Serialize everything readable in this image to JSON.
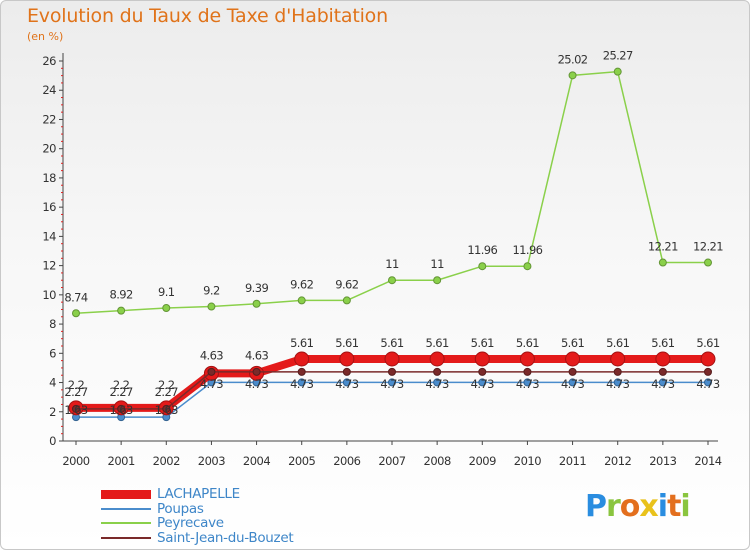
{
  "header": {
    "title": "Evolution du Taux de Taxe d'Habitation",
    "unit": "(en %)"
  },
  "logo": {
    "text": "Proxiti",
    "colors": [
      "#2a8de0",
      "#8ac53f",
      "#e36f1e",
      "#e9c21c",
      "#2a8de0",
      "#e36f1e",
      "#8ac53f"
    ]
  },
  "chart_data": {
    "type": "line",
    "title": "Evolution du Taux de Taxe d'Habitation",
    "ylabel": "(en %)",
    "xlabel": "",
    "x": [
      2000,
      2001,
      2002,
      2003,
      2004,
      2005,
      2006,
      2007,
      2008,
      2009,
      2010,
      2011,
      2012,
      2013,
      2014
    ],
    "ylim": [
      0,
      26
    ],
    "yticks": [
      0,
      2,
      4,
      6,
      8,
      10,
      12,
      14,
      16,
      18,
      20,
      22,
      24,
      26
    ],
    "grid": false,
    "legend_position": "bottom-left",
    "series": [
      {
        "name": "LACHAPELLE",
        "color": "#e41a1a",
        "values": [
          2.27,
          2.27,
          2.27,
          4.63,
          4.63,
          5.61,
          5.61,
          5.61,
          5.61,
          5.61,
          5.61,
          5.61,
          5.61,
          5.61,
          5.61
        ],
        "labels": [
          "2.27",
          "2.27",
          "2.27",
          "4.63",
          "4.63",
          "5.61",
          "5.61",
          "5.61",
          "5.61",
          "5.61",
          "5.61",
          "5.61",
          "5.61",
          "5.61",
          "5.61"
        ]
      },
      {
        "name": "Poupas",
        "color": "#4a8ccc",
        "values": [
          1.63,
          1.63,
          1.63,
          4.01,
          4.01,
          4.01,
          4.01,
          4.01,
          4.01,
          4.01,
          4.01,
          4.01,
          4.01,
          4.01,
          4.01
        ],
        "labels": [
          "1.63",
          "1.63",
          "1.63",
          "",
          "",
          "",
          "",
          "",
          "",
          "",
          "",
          "",
          "",
          "",
          ""
        ]
      },
      {
        "name": "Peyrecave",
        "color": "#8ad04a",
        "values": [
          8.74,
          8.92,
          9.1,
          9.2,
          9.39,
          9.62,
          9.62,
          11,
          11,
          11.96,
          11.96,
          25.02,
          25.27,
          12.21,
          12.21
        ],
        "labels": [
          "8.74",
          "8.92",
          "9.1",
          "9.2",
          "9.39",
          "9.62",
          "9.62",
          "11",
          "11",
          "11.96",
          "11.96",
          "25.02",
          "25.27",
          "12.21",
          "12.21"
        ]
      },
      {
        "name": "Saint-Jean-du-Bouzet",
        "color": "#7a2a2a",
        "values": [
          2.2,
          2.2,
          2.2,
          4.73,
          4.73,
          4.73,
          4.73,
          4.73,
          4.73,
          4.73,
          4.73,
          4.73,
          4.73,
          4.73,
          4.73
        ],
        "labels": [
          "2.2",
          "2.2",
          "2.2",
          "4.73",
          "4.73",
          "4.73",
          "4.73",
          "4.73",
          "4.73",
          "4.73",
          "4.73",
          "4.73",
          "4.73",
          "4.73",
          "4.73"
        ]
      }
    ]
  }
}
